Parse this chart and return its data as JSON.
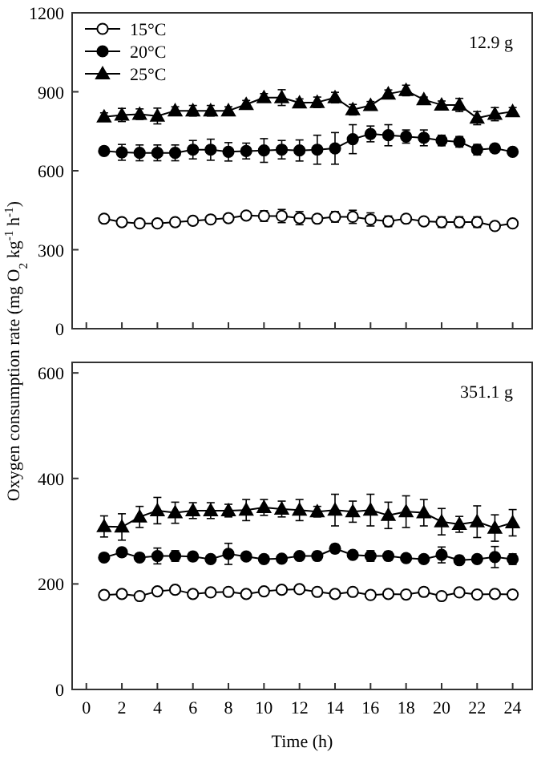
{
  "chart_data": [
    {
      "type": "line",
      "ylabel": "Oxygen consumption rate (mg O$_{2}$ kg$^{-1}$ h$^{-1}$)",
      "annotations": [
        "12.9 g"
      ],
      "xlim": [
        -0.8,
        25.1
      ],
      "xticks": [
        {
          "value": 0,
          "label": null
        },
        {
          "value": 2,
          "label": null
        },
        {
          "value": 4,
          "label": null
        },
        {
          "value": 6,
          "label": null
        },
        {
          "value": 8,
          "label": null
        },
        {
          "value": 10,
          "label": null
        },
        {
          "value": 12,
          "label": null
        },
        {
          "value": 14,
          "label": null
        },
        {
          "value": 16,
          "label": null
        },
        {
          "value": 18,
          "label": null
        },
        {
          "value": 20,
          "label": null
        },
        {
          "value": 22,
          "label": null
        },
        {
          "value": 24,
          "label": null
        }
      ],
      "ylim": [
        0,
        1200
      ],
      "yticks": [
        0,
        300,
        600,
        900,
        1200
      ],
      "tick_labels": "y",
      "legend": "top left",
      "grid": false,
      "x": [
        1,
        2,
        3,
        4,
        5,
        6,
        7,
        8,
        9,
        10,
        11,
        12,
        13,
        14,
        15,
        16,
        17,
        18,
        19,
        20,
        21,
        22,
        23,
        24
      ],
      "series": [
        {
          "name": "15°C",
          "color": "#ffffff",
          "marker": "circle",
          "values": [
            418,
            405,
            400,
            400,
            405,
            410,
            415,
            420,
            430,
            428,
            428,
            420,
            418,
            425,
            425,
            415,
            408,
            418,
            408,
            405,
            405,
            405,
            390,
            400
          ],
          "errors": [
            10,
            10,
            5,
            5,
            5,
            10,
            10,
            5,
            10,
            20,
            25,
            25,
            15,
            20,
            25,
            25,
            20,
            10,
            10,
            20,
            20,
            20,
            10,
            10
          ]
        },
        {
          "name": "20°C",
          "color": "#000000",
          "marker": "circle",
          "values": [
            675,
            670,
            668,
            668,
            668,
            680,
            680,
            672,
            675,
            677,
            680,
            677,
            680,
            685,
            720,
            740,
            735,
            730,
            725,
            715,
            710,
            680,
            685,
            672
          ],
          "errors": [
            15,
            30,
            30,
            30,
            30,
            35,
            40,
            35,
            30,
            45,
            35,
            40,
            55,
            60,
            55,
            30,
            40,
            25,
            30,
            20,
            20,
            20,
            15,
            10
          ]
        },
        {
          "name": "25°C",
          "color": "#000000",
          "marker": "triangle",
          "values": [
            805,
            812,
            815,
            808,
            828,
            828,
            828,
            828,
            852,
            878,
            878,
            858,
            860,
            878,
            832,
            848,
            892,
            905,
            870,
            850,
            850,
            800,
            815,
            825
          ],
          "errors": [
            15,
            25,
            20,
            30,
            15,
            20,
            20,
            15,
            15,
            15,
            30,
            15,
            20,
            20,
            20,
            15,
            15,
            20,
            10,
            15,
            25,
            25,
            25,
            15
          ]
        }
      ]
    },
    {
      "type": "line",
      "xlabel": "Time (h)",
      "annotations": [
        "351.1 g"
      ],
      "xlim": [
        -0.8,
        25.1
      ],
      "xticks": [
        0,
        2,
        4,
        6,
        8,
        10,
        12,
        14,
        16,
        18,
        20,
        22,
        24
      ],
      "ylim": [
        0,
        620
      ],
      "yticks": [
        0,
        200,
        400,
        600
      ],
      "legend": false,
      "grid": false,
      "x": [
        1,
        2,
        3,
        4,
        5,
        6,
        7,
        8,
        9,
        10,
        11,
        12,
        13,
        14,
        15,
        16,
        17,
        18,
        19,
        20,
        21,
        22,
        23,
        24
      ],
      "series": [
        {
          "color": "#ffffff",
          "marker": "circle",
          "values": [
            179,
            181,
            177,
            186,
            189,
            181,
            184,
            185,
            181,
            186,
            189,
            190,
            185,
            181,
            185,
            179,
            181,
            180,
            185,
            177,
            184,
            180,
            181,
            180
          ],
          "errors": [
            3,
            3,
            3,
            3,
            3,
            3,
            3,
            3,
            3,
            3,
            3,
            3,
            3,
            3,
            3,
            3,
            3,
            3,
            8,
            3,
            3,
            3,
            3,
            3
          ]
        },
        {
          "color": "#000000",
          "marker": "circle",
          "values": [
            250,
            260,
            250,
            253,
            253,
            252,
            247,
            257,
            252,
            247,
            248,
            253,
            253,
            267,
            255,
            253,
            253,
            249,
            247,
            255,
            245,
            247,
            251,
            247
          ],
          "errors": [
            5,
            8,
            5,
            15,
            10,
            8,
            5,
            20,
            5,
            5,
            5,
            5,
            8,
            8,
            5,
            10,
            8,
            5,
            5,
            15,
            8,
            5,
            20,
            10
          ]
        },
        {
          "color": "#000000",
          "marker": "triangle",
          "values": [
            309,
            308,
            327,
            339,
            335,
            339,
            339,
            339,
            340,
            345,
            342,
            340,
            337,
            340,
            337,
            340,
            330,
            337,
            335,
            318,
            313,
            318,
            306,
            316
          ],
          "errors": [
            20,
            25,
            20,
            25,
            20,
            15,
            15,
            12,
            20,
            15,
            15,
            20,
            10,
            30,
            20,
            30,
            25,
            30,
            25,
            25,
            15,
            30,
            25,
            25
          ]
        }
      ]
    }
  ]
}
